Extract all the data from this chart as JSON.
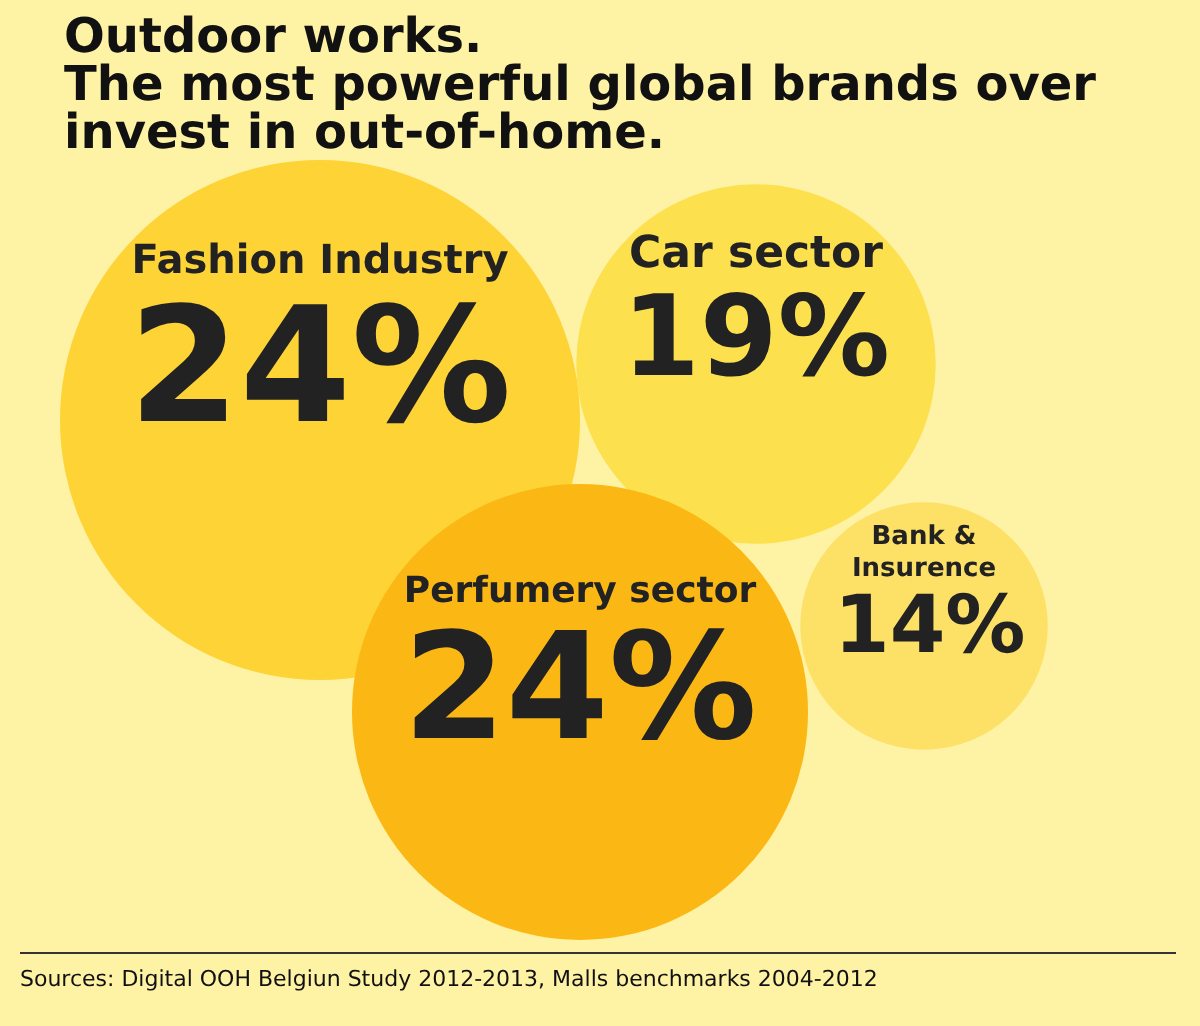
{
  "chart_data": {
    "type": "other",
    "title": "Outdoor works.",
    "subtitle": "The most powerful global brands over invest in out-of-home.",
    "categories": [
      "Fashion Industry",
      "Car sector",
      "Perfumery sector",
      "Bank & Insurence"
    ],
    "values": [
      24,
      19,
      24,
      14
    ],
    "value_labels": [
      "24%",
      "19%",
      "24%",
      "14%"
    ],
    "colors": [
      "#fdd336",
      "#fde04e",
      "#fbb814",
      "#fde066"
    ],
    "annotations": [
      "Sources: Digital OOH Belgiun Study 2012-2013, Malls benchmarks 2004-2012"
    ]
  }
}
